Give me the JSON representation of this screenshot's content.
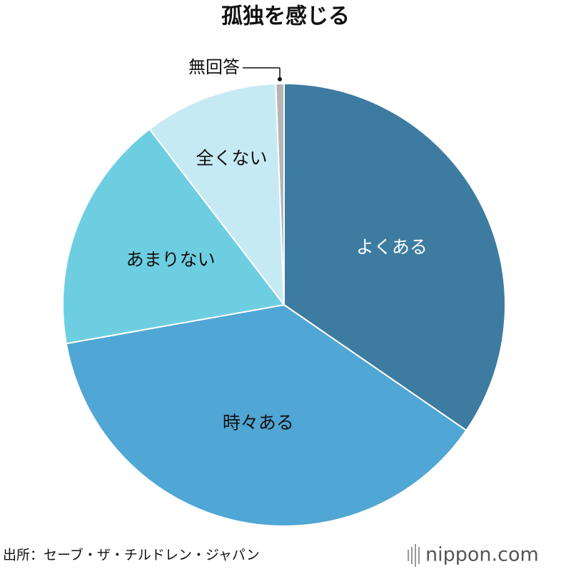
{
  "chart_data": {
    "type": "pie",
    "title": "孤独を感じる",
    "categories": [
      "よくある",
      "時々ある",
      "あまりない",
      "全くない",
      "無回答"
    ],
    "values": [
      34.6,
      37.6,
      17.4,
      9.8,
      0.6
    ],
    "colors": [
      "#3d7ca0",
      "#50a6d4",
      "#6ecee1",
      "#c6eaf3",
      "#b5b5b5"
    ],
    "source": "出所：セーブ・ザ・チルドレン・ジャパン",
    "logo": "nippon.com"
  }
}
